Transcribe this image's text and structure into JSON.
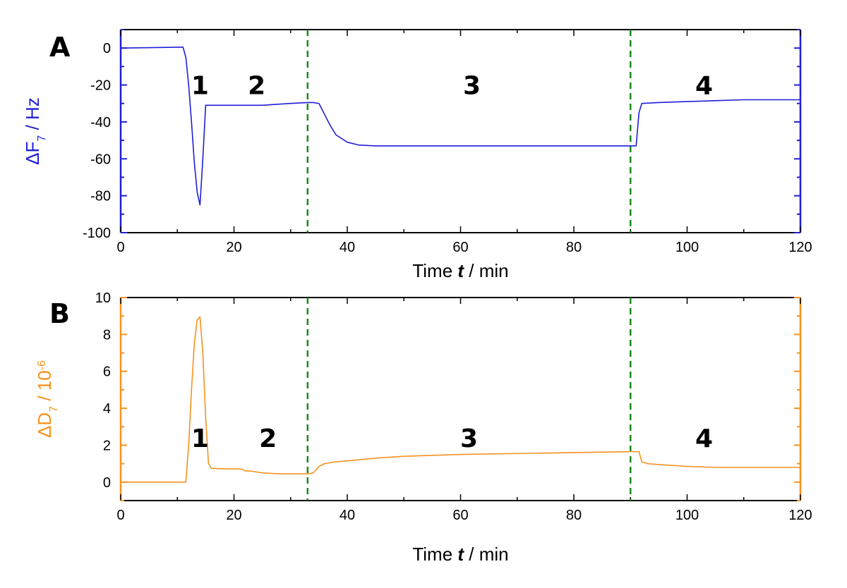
{
  "chart_data": [
    {
      "panel": "A",
      "type": "line",
      "color": "#1f1fd6",
      "xlabel_parts": [
        "Time ",
        "t",
        " / min"
      ],
      "ylabel_parts": [
        "ΔF",
        "7",
        " / Hz"
      ],
      "xlim": [
        0,
        120
      ],
      "ylim": [
        -100,
        10
      ],
      "xticks": [
        0,
        20,
        40,
        60,
        80,
        100,
        120
      ],
      "yticks": [
        0,
        -20,
        -40,
        -60,
        -80,
        -100
      ],
      "ytick_labels": [
        "0",
        "-20",
        "-40",
        "-60",
        "-80",
        "-100"
      ],
      "xtick_labels": [
        "0",
        "20",
        "40",
        "60",
        "80",
        "100",
        "120"
      ],
      "vlines": [
        33,
        90
      ],
      "vline_color": "#1a8a1a",
      "regions": [
        {
          "label": "1",
          "x": 14,
          "y": -20
        },
        {
          "label": "2",
          "x": 24,
          "y": -20
        },
        {
          "label": "3",
          "x": 62,
          "y": -20
        },
        {
          "label": "4",
          "x": 103,
          "y": -20
        }
      ],
      "series": [
        {
          "x": [
            0,
            11,
            11.5,
            12,
            12.5,
            13,
            13.5,
            14,
            14.5,
            15,
            15.5,
            16,
            20,
            25,
            30,
            33,
            34,
            35,
            36,
            37,
            38,
            40,
            42,
            45,
            50,
            60,
            70,
            80,
            90,
            91,
            91.5,
            92,
            95,
            100,
            105,
            110,
            115,
            120
          ],
          "y": [
            0,
            0.5,
            -5,
            -20,
            -40,
            -62,
            -78,
            -85,
            -60,
            -31,
            -31,
            -31,
            -31,
            -31,
            -30,
            -29.5,
            -29.5,
            -30,
            -36,
            -42,
            -47,
            -51,
            -52.5,
            -53,
            -53,
            -53,
            -53,
            -53,
            -53,
            -53,
            -35,
            -30,
            -29.5,
            -29,
            -28.5,
            -28,
            -28,
            -28
          ]
        }
      ]
    },
    {
      "panel": "B",
      "type": "line",
      "color": "#f5921e",
      "xlabel_parts": [
        "Time ",
        "t",
        " / min"
      ],
      "ylabel_parts": [
        "ΔD",
        "7",
        " / 10",
        "-6"
      ],
      "xlim": [
        0,
        120
      ],
      "ylim": [
        -1,
        10
      ],
      "xticks": [
        0,
        20,
        40,
        60,
        80,
        100,
        120
      ],
      "yticks": [
        0,
        2,
        4,
        6,
        8,
        10
      ],
      "ytick_labels": [
        "0",
        "2",
        "4",
        "6",
        "8",
        "10"
      ],
      "xtick_labels": [
        "0",
        "20",
        "40",
        "60",
        "80",
        "100",
        "120"
      ],
      "vlines": [
        33,
        90
      ],
      "vline_color": "#1a8a1a",
      "regions": [
        {
          "label": "1",
          "x": 14,
          "y": 2.4
        },
        {
          "label": "2",
          "x": 26,
          "y": 2.4
        },
        {
          "label": "3",
          "x": 61.5,
          "y": 2.4
        },
        {
          "label": "4",
          "x": 103,
          "y": 2.4
        }
      ],
      "series": [
        {
          "x": [
            0,
            11.5,
            12,
            12.5,
            13,
            13.5,
            14,
            14.5,
            15,
            15.5,
            16,
            18,
            20,
            21.5,
            22,
            23,
            25,
            28,
            30,
            33,
            34,
            35,
            36,
            38,
            40,
            45,
            50,
            60,
            70,
            80,
            90,
            91.5,
            92,
            93,
            95,
            100,
            105,
            110,
            115,
            120
          ],
          "y": [
            0,
            0,
            2.0,
            5.0,
            7.5,
            8.8,
            8.95,
            7.0,
            3.5,
            1.0,
            0.75,
            0.72,
            0.72,
            0.7,
            0.6,
            0.6,
            0.5,
            0.45,
            0.45,
            0.45,
            0.5,
            0.85,
            1.0,
            1.1,
            1.15,
            1.3,
            1.4,
            1.5,
            1.55,
            1.6,
            1.65,
            1.65,
            1.1,
            1.0,
            0.95,
            0.85,
            0.8,
            0.8,
            0.8,
            0.8
          ]
        }
      ]
    }
  ]
}
